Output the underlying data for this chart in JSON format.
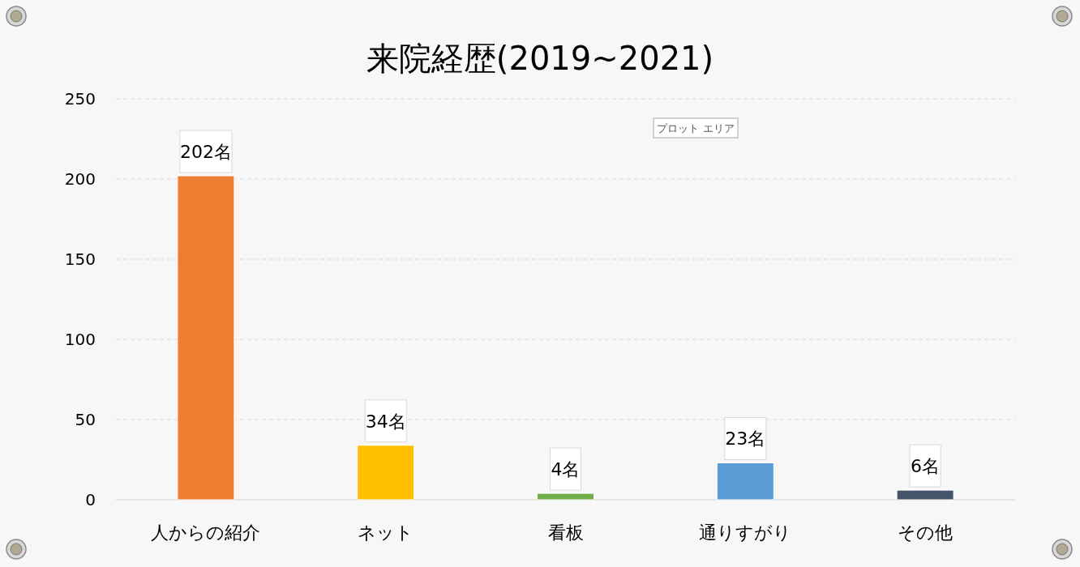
{
  "chart_data": {
    "type": "bar",
    "title": "来院経歴(2019~2021)",
    "categories": [
      "人からの紹介",
      "ネット",
      "看板",
      "通りすがり",
      "その他"
    ],
    "values": [
      202,
      34,
      4,
      23,
      6
    ],
    "colors": [
      "#ed7d31",
      "#ffc000",
      "#70ad47",
      "#5b9bd5",
      "#44546a"
    ],
    "value_labels": [
      "202名",
      "34名",
      "4名",
      "23名",
      "6名"
    ],
    "ylim": [
      0,
      250
    ],
    "yticks": [
      0,
      50,
      100,
      150,
      200,
      250
    ],
    "grid": "y",
    "annotations": [
      "プロット エリア"
    ]
  }
}
